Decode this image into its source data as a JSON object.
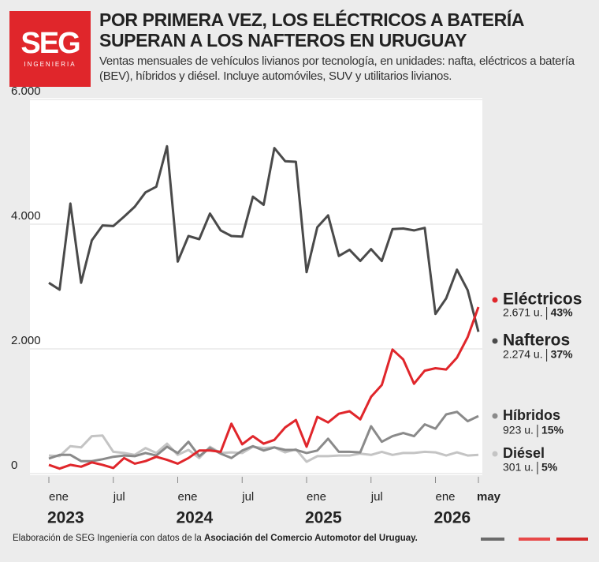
{
  "logo": {
    "name": "SEG",
    "tagline": "INGENIERIA"
  },
  "source": {
    "prefix": "Elaboración de SEG Ingeniería con datos de la",
    "organization": "Asociación del Comercio Automotor del Uruguay."
  },
  "chart_data": {
    "type": "line",
    "title": "POR PRIMERA VEZ, LOS ELÉCTRICOS A BATERÍA SUPERAN A LOS NAFTEROS EN URUGUAY",
    "subtitle": "Ventas mensuales de vehículos livianos por tecnología, en unidades: nafta, eléctricos a batería (BEV), híbridos y diésel. Incluye automóviles, SUV y utilitarios livianos.",
    "categories": [
      "ene",
      null,
      null,
      null,
      null,
      null,
      "jul",
      null,
      null,
      null,
      null,
      null,
      "ene",
      null,
      null,
      null,
      null,
      null,
      "jul",
      null,
      null,
      null,
      null,
      null,
      "ene",
      null,
      null,
      null,
      null,
      null,
      "jul",
      null,
      null,
      null,
      null,
      null,
      "ene",
      null,
      null,
      null,
      "may"
    ],
    "years": [
      "2023",
      null,
      null,
      null,
      null,
      null,
      null,
      null,
      null,
      null,
      null,
      null,
      "2024",
      null,
      null,
      null,
      null,
      null,
      null,
      null,
      null,
      null,
      null,
      null,
      "2025",
      null,
      null,
      null,
      null,
      null,
      null,
      null,
      null,
      null,
      null,
      null,
      "2026",
      null,
      null,
      null,
      null
    ],
    "ylim": [
      0,
      6000
    ],
    "yticks": [
      {
        "value": 0,
        "label": "0"
      },
      {
        "value": 2000,
        "label": "2.000"
      },
      {
        "value": 4000,
        "label": "4.000"
      },
      {
        "value": 6000,
        "label": "6.000"
      }
    ],
    "grid": true,
    "series": [
      {
        "name": "Eléctricos",
        "color": "#e0262b",
        "end_label": "2.671 u.",
        "share": "43%",
        "values": [
          140,
          80,
          140,
          110,
          180,
          140,
          90,
          250,
          160,
          200,
          270,
          220,
          160,
          250,
          370,
          370,
          350,
          800,
          470,
          600,
          480,
          540,
          740,
          860,
          430,
          910,
          820,
          960,
          1000,
          870,
          1230,
          1420,
          1990,
          1830,
          1440,
          1650,
          1690,
          1670,
          1860,
          2190,
          2671
        ]
      },
      {
        "name": "Nafteros",
        "color": "#4a4a4a",
        "end_label": "2.274 u.",
        "share": "37%",
        "values": [
          3060,
          2950,
          4330,
          3060,
          3740,
          3980,
          3970,
          4120,
          4280,
          4510,
          4600,
          5250,
          3400,
          3810,
          3760,
          4170,
          3900,
          3810,
          3800,
          4440,
          4310,
          5220,
          5010,
          5000,
          3230,
          3950,
          4140,
          3490,
          3590,
          3410,
          3600,
          3410,
          3920,
          3930,
          3900,
          3940,
          2560,
          2810,
          3270,
          2940,
          2274
        ]
      },
      {
        "name": "Híbridos",
        "color": "#8a8a8a",
        "end_label": "923 u.",
        "share": "15%",
        "values": [
          240,
          300,
          300,
          200,
          200,
          230,
          270,
          290,
          280,
          330,
          290,
          430,
          330,
          510,
          280,
          410,
          320,
          250,
          370,
          440,
          370,
          420,
          380,
          380,
          330,
          370,
          560,
          350,
          350,
          340,
          760,
          510,
          600,
          650,
          600,
          790,
          720,
          950,
          990,
          840,
          923
        ]
      },
      {
        "name": "Diésel",
        "color": "#c4c4c4",
        "end_label": "301 u.",
        "share": "5%",
        "values": [
          290,
          280,
          440,
          420,
          600,
          610,
          350,
          330,
          300,
          410,
          330,
          480,
          300,
          380,
          250,
          430,
          330,
          340,
          330,
          430,
          410,
          420,
          340,
          390,
          190,
          280,
          280,
          290,
          290,
          320,
          300,
          350,
          300,
          330,
          330,
          350,
          340,
          290,
          340,
          290,
          301
        ]
      }
    ]
  }
}
